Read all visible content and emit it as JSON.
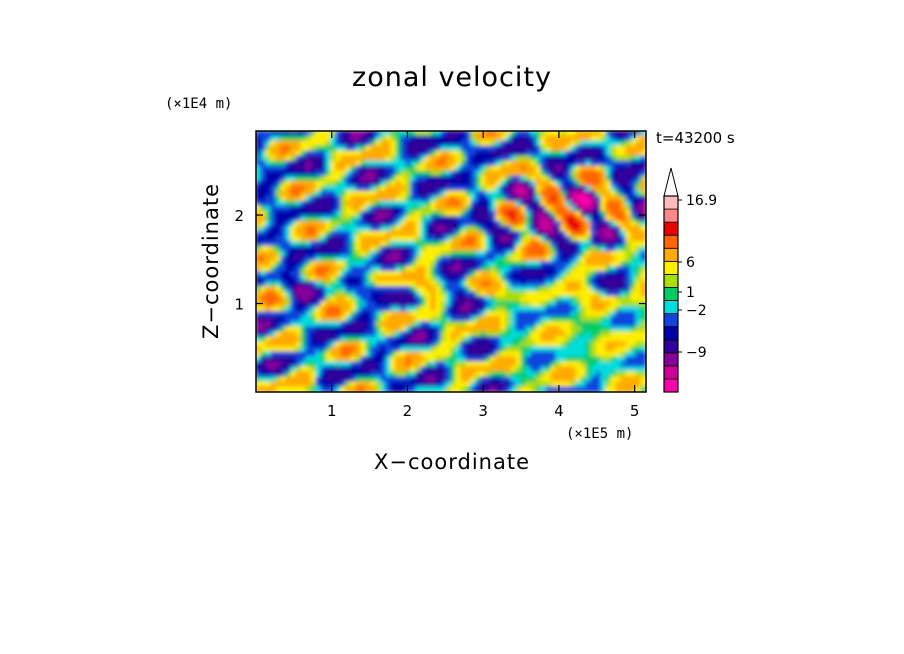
{
  "chart_data": {
    "type": "heatmap",
    "title": "zonal velocity",
    "xlabel": "X−coordinate",
    "ylabel": "Z−coordinate",
    "x_multiplier": "(×1E5 m)",
    "y_multiplier": "(×1E4 m)",
    "time_label": "t=43200 s",
    "xlim": [
      0,
      5.15
    ],
    "ylim": [
      0,
      2.95
    ],
    "x_ticks": [
      1,
      2,
      3,
      4,
      5
    ],
    "x_tick_labels": [
      "1",
      "2",
      "3",
      "4",
      "5"
    ],
    "y_ticks": [
      1,
      2
    ],
    "y_tick_labels": [
      "1",
      "2"
    ],
    "colorbar": {
      "colors": [
        "#ff00aa",
        "#cc0099",
        "#880099",
        "#330099",
        "#0000aa",
        "#1144dd",
        "#00dddd",
        "#00cc66",
        "#aadd00",
        "#ffee00",
        "#ffaa00",
        "#ff6600",
        "#ee0000",
        "#ff8888",
        "#ffbbbb"
      ],
      "labels": [
        "16.9",
        "6",
        "1",
        "−2",
        "−9"
      ],
      "label_values": [
        16.9,
        6,
        1,
        -2,
        -9
      ],
      "extend": "max"
    },
    "z_range": [
      -15,
      16.9
    ],
    "field_description_note": ""
  }
}
